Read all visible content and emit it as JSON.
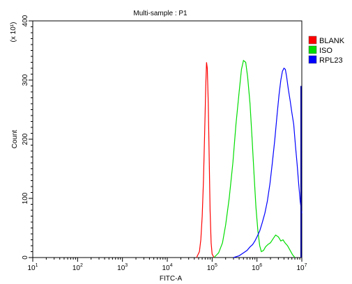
{
  "chart_data": {
    "type": "line",
    "title": "Multi-sample : P1",
    "xlabel": "FITC-A",
    "ylabel": "Count",
    "y_multiplier": "(x 10¹)",
    "x_scale": "log",
    "xlim": [
      10,
      10000000
    ],
    "ylim": [
      0,
      400
    ],
    "x_ticks": [
      {
        "value": 10,
        "base": "10",
        "exp": "1"
      },
      {
        "value": 100,
        "base": "10",
        "exp": "2"
      },
      {
        "value": 1000,
        "base": "10",
        "exp": "3"
      },
      {
        "value": 10000,
        "base": "10",
        "exp": "4"
      },
      {
        "value": 100000,
        "base": "10",
        "exp": "5"
      },
      {
        "value": 1000000,
        "base": "10",
        "exp": "6"
      },
      {
        "value": 10000000,
        "base": "10",
        "exp": "7"
      }
    ],
    "y_ticks": [
      "0",
      "100",
      "200",
      "300",
      "400"
    ],
    "legend_position": "right",
    "series": [
      {
        "name": "BLANK",
        "color": "#ff0000",
        "x": [
          45000,
          52000,
          56000,
          60000,
          64000,
          68000,
          72000,
          75000,
          78000,
          82000,
          86000,
          90000,
          95000,
          100000,
          110000
        ],
        "y": [
          0,
          10,
          30,
          70,
          130,
          210,
          290,
          330,
          320,
          260,
          170,
          80,
          25,
          6,
          0
        ]
      },
      {
        "name": "ISO",
        "color": "#00dd00",
        "x": [
          110000,
          140000,
          170000,
          200000,
          240000,
          290000,
          340000,
          400000,
          450000,
          500000,
          560000,
          620000,
          700000,
          780000,
          860000,
          950000,
          1050000,
          1150000,
          1250000,
          1400000,
          1550000,
          1750000,
          2000000,
          2300000,
          2600000,
          3000000,
          3400000,
          3800000,
          4200000,
          4800000,
          5500000,
          6200000,
          7000000
        ],
        "y": [
          0,
          8,
          25,
          55,
          100,
          160,
          225,
          280,
          318,
          333,
          330,
          305,
          260,
          200,
          140,
          85,
          45,
          20,
          10,
          12,
          18,
          22,
          25,
          32,
          38,
          35,
          28,
          30,
          25,
          20,
          12,
          5,
          0
        ]
      },
      {
        "name": "RPL23",
        "color": "#0000ff",
        "x": [
          300000,
          400000,
          500000,
          600000,
          700000,
          800000,
          900000,
          1000000,
          1150000,
          1300000,
          1500000,
          1700000,
          1950000,
          2200000,
          2500000,
          2800000,
          3100000,
          3400000,
          3700000,
          4000000,
          4300000,
          4600000,
          5000000,
          5500000,
          6000000,
          6600000,
          7200000,
          7800000,
          8500000,
          9200000,
          10000000
        ],
        "y": [
          0,
          3,
          8,
          12,
          18,
          22,
          28,
          35,
          45,
          58,
          75,
          95,
          125,
          160,
          200,
          240,
          275,
          300,
          315,
          320,
          318,
          305,
          285,
          265,
          245,
          225,
          190,
          160,
          125,
          95,
          75
        ]
      }
    ],
    "edge_bar": {
      "x": 10000000,
      "y": 290,
      "color": "#00008b"
    }
  }
}
